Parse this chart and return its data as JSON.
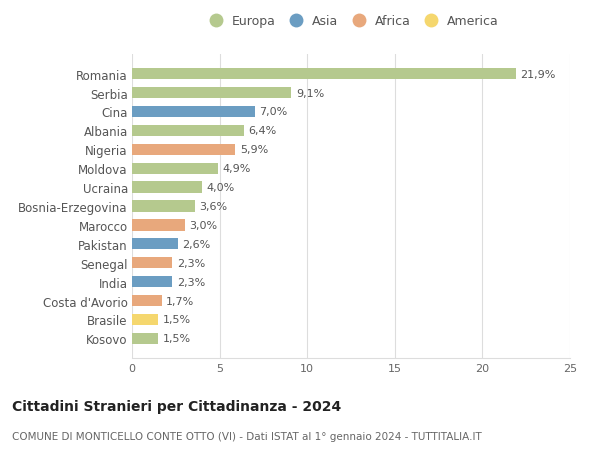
{
  "categories": [
    "Romania",
    "Serbia",
    "Cina",
    "Albania",
    "Nigeria",
    "Moldova",
    "Ucraina",
    "Bosnia-Erzegovina",
    "Marocco",
    "Pakistan",
    "Senegal",
    "India",
    "Costa d'Avorio",
    "Brasile",
    "Kosovo"
  ],
  "values": [
    21.9,
    9.1,
    7.0,
    6.4,
    5.9,
    4.9,
    4.0,
    3.6,
    3.0,
    2.6,
    2.3,
    2.3,
    1.7,
    1.5,
    1.5
  ],
  "labels": [
    "21,9%",
    "9,1%",
    "7,0%",
    "6,4%",
    "5,9%",
    "4,9%",
    "4,0%",
    "3,6%",
    "3,0%",
    "2,6%",
    "2,3%",
    "2,3%",
    "1,7%",
    "1,5%",
    "1,5%"
  ],
  "continents": [
    "Europa",
    "Europa",
    "Asia",
    "Europa",
    "Africa",
    "Europa",
    "Europa",
    "Europa",
    "Africa",
    "Asia",
    "Africa",
    "Asia",
    "Africa",
    "America",
    "Europa"
  ],
  "colors": {
    "Europa": "#b5c98e",
    "Asia": "#6b9dc2",
    "Africa": "#e8a87c",
    "America": "#f5d76e"
  },
  "legend_order": [
    "Europa",
    "Asia",
    "Africa",
    "America"
  ],
  "title": "Cittadini Stranieri per Cittadinanza - 2024",
  "subtitle": "COMUNE DI MONTICELLO CONTE OTTO (VI) - Dati ISTAT al 1° gennaio 2024 - TUTTITALIA.IT",
  "xlim": [
    0,
    25
  ],
  "xticks": [
    0,
    5,
    10,
    15,
    20,
    25
  ],
  "background_color": "#ffffff",
  "grid_color": "#dddddd",
  "bar_height": 0.6,
  "label_fontsize": 8,
  "title_fontsize": 10,
  "subtitle_fontsize": 7.5,
  "ytick_fontsize": 8.5,
  "xtick_fontsize": 8
}
